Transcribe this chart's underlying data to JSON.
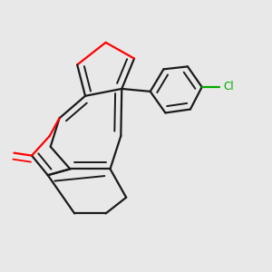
{
  "background_color": "#e8e8e8",
  "bond_color": "#1a1a1a",
  "oxygen_color": "#ff0000",
  "chlorine_color": "#00aa00",
  "line_width": 1.6,
  "figsize": [
    3.0,
    3.0
  ],
  "dpi": 100
}
